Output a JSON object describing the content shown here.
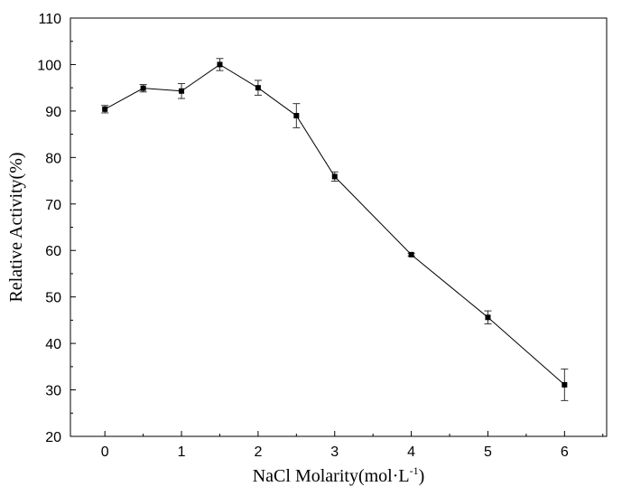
{
  "chart_data": {
    "type": "line",
    "title": "",
    "xlabel": "NaCl Molarity(mol·L",
    "xlabel_sup": "-1",
    "xlabel_close": ")",
    "ylabel": "Relative Activity(%)",
    "xlim": [
      -0.45,
      6.55
    ],
    "ylim": [
      20,
      110
    ],
    "xticks": [
      0,
      1,
      2,
      3,
      4,
      5,
      6
    ],
    "xtick_labels": [
      "0",
      "1",
      "2",
      "3",
      "4",
      "5",
      "6"
    ],
    "yticks": [
      20,
      30,
      40,
      50,
      60,
      70,
      80,
      90,
      100,
      110
    ],
    "ytick_labels": [
      "20",
      "30",
      "40",
      "50",
      "60",
      "70",
      "80",
      "90",
      "100",
      "110"
    ],
    "grid": false,
    "legend": "none",
    "marker": "square",
    "series": [
      {
        "x": [
          0,
          0.5,
          1,
          1.5,
          2,
          2.5,
          3,
          4,
          5,
          6
        ],
        "y": [
          90.4,
          94.9,
          94.3,
          100.0,
          95.0,
          89.0,
          75.9,
          59.1,
          45.6,
          31.1
        ],
        "error": [
          0.8,
          0.8,
          1.6,
          1.3,
          1.6,
          2.6,
          1.0,
          0.3,
          1.4,
          3.4
        ]
      }
    ],
    "colors": {
      "line": "#000000",
      "axis": "#000000"
    }
  }
}
